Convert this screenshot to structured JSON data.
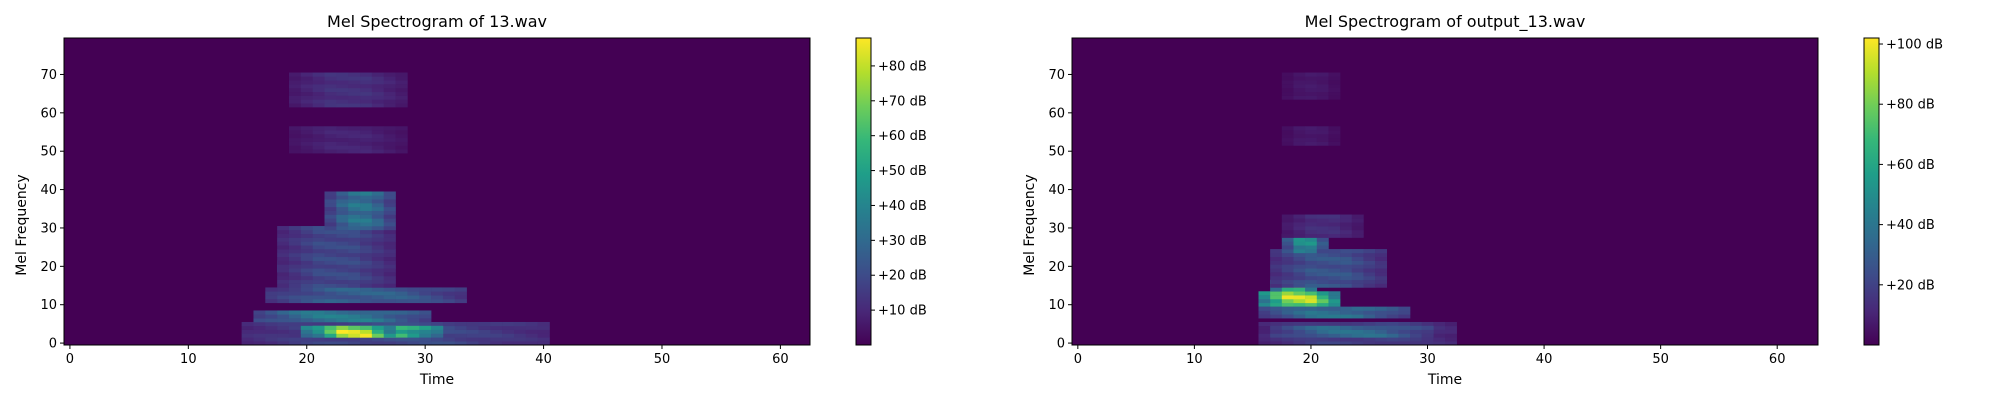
{
  "chart_data": [
    {
      "type": "heatmap",
      "title": "Mel Spectrogram of 13.wav",
      "xlabel": "Time",
      "ylabel": "Mel Frequency",
      "xlim": [
        -0.5,
        62.5
      ],
      "ylim": [
        -0.5,
        79.5
      ],
      "x_ticks": [
        0,
        10,
        20,
        30,
        40,
        50,
        60
      ],
      "y_ticks": [
        0,
        10,
        20,
        30,
        40,
        50,
        60,
        70
      ],
      "colormap": "viridis",
      "colorbar": {
        "vmin": 0,
        "vmax": 88,
        "ticks": [
          10,
          20,
          30,
          40,
          50,
          60,
          70,
          80
        ],
        "tick_labels": [
          "+10 dB",
          "+20 dB",
          "+30 dB",
          "+40 dB",
          "+50 dB",
          "+60 dB",
          "+70 dB",
          "+80 dB"
        ]
      },
      "regions": [
        {
          "t": [
            15,
            40
          ],
          "f": [
            0,
            5
          ],
          "level": 22
        },
        {
          "t": [
            20,
            31
          ],
          "f": [
            2,
            4
          ],
          "level": 75
        },
        {
          "t": [
            21,
            27
          ],
          "f": [
            2,
            4
          ],
          "level": 88
        },
        {
          "t": [
            16,
            30
          ],
          "f": [
            6,
            8
          ],
          "level": 40
        },
        {
          "t": [
            17,
            33
          ],
          "f": [
            11,
            14
          ],
          "level": 30
        },
        {
          "t": [
            18,
            26
          ],
          "f": [
            19,
            21
          ],
          "level": 48
        },
        {
          "t": [
            18,
            27
          ],
          "f": [
            15,
            30
          ],
          "level": 22
        },
        {
          "t": [
            22,
            27
          ],
          "f": [
            30,
            39
          ],
          "level": 38
        },
        {
          "t": [
            19,
            28
          ],
          "f": [
            62,
            70
          ],
          "level": 14
        },
        {
          "t": [
            19,
            28
          ],
          "f": [
            50,
            56
          ],
          "level": 10
        }
      ]
    },
    {
      "type": "heatmap",
      "title": "Mel Spectrogram of output_13.wav",
      "xlabel": "Time",
      "ylabel": "Mel Frequency",
      "xlim": [
        -0.5,
        63.5
      ],
      "ylim": [
        -0.5,
        79.5
      ],
      "x_ticks": [
        0,
        10,
        20,
        30,
        40,
        50,
        60
      ],
      "y_ticks": [
        0,
        10,
        20,
        30,
        40,
        50,
        60,
        70
      ],
      "colormap": "viridis",
      "colorbar": {
        "vmin": 0,
        "vmax": 102,
        "ticks": [
          20,
          40,
          60,
          80,
          100
        ],
        "tick_labels": [
          "+20 dB",
          "+40 dB",
          "+60 dB",
          "+80 dB",
          "+100 dB"
        ]
      },
      "regions": [
        {
          "t": [
            16,
            32
          ],
          "f": [
            0,
            5
          ],
          "level": 22
        },
        {
          "t": [
            17,
            30
          ],
          "f": [
            2,
            4
          ],
          "level": 40
        },
        {
          "t": [
            16,
            22
          ],
          "f": [
            10,
            13
          ],
          "level": 100
        },
        {
          "t": [
            17,
            20
          ],
          "f": [
            14,
            16
          ],
          "level": 90
        },
        {
          "t": [
            16,
            28
          ],
          "f": [
            7,
            9
          ],
          "level": 42
        },
        {
          "t": [
            17,
            26
          ],
          "f": [
            15,
            24
          ],
          "level": 30
        },
        {
          "t": [
            18,
            21
          ],
          "f": [
            24,
            28
          ],
          "level": 55
        },
        {
          "t": [
            18,
            24
          ],
          "f": [
            28,
            33
          ],
          "level": 15
        },
        {
          "t": [
            18,
            22
          ],
          "f": [
            52,
            56
          ],
          "level": 8
        },
        {
          "t": [
            18,
            22
          ],
          "f": [
            64,
            70
          ],
          "level": 8
        }
      ]
    }
  ]
}
